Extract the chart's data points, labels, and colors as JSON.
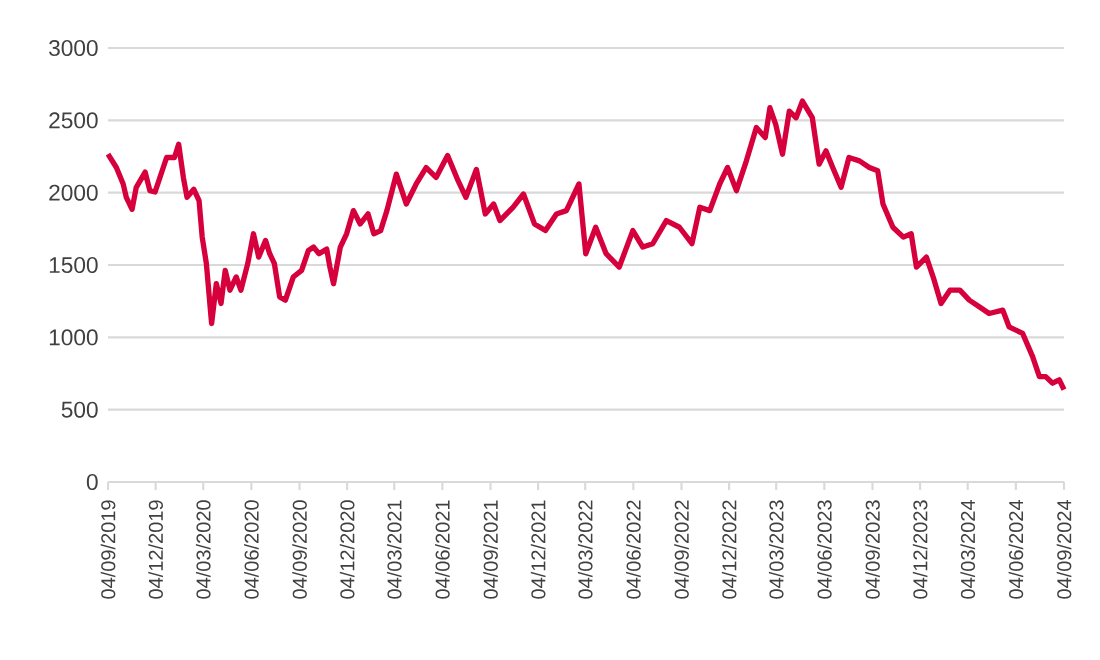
{
  "chart_data": {
    "type": "line",
    "color": "#d6003c",
    "grid": "y",
    "marker": "none",
    "line_style": "solid",
    "xlim": [
      "2019-09-04",
      "2024-09-04"
    ],
    "ylim": [
      0,
      3000
    ],
    "yticks": [
      0,
      500,
      1000,
      1500,
      2000,
      2500,
      3000
    ],
    "xticks": [
      {
        "value": "2019-09-04",
        "label": "04/09/2019"
      },
      {
        "value": "2019-12-04",
        "label": "04/12/2019"
      },
      {
        "value": "2020-03-04",
        "label": "04/03/2020"
      },
      {
        "value": "2020-06-04",
        "label": "04/06/2020"
      },
      {
        "value": "2020-09-04",
        "label": "04/09/2020"
      },
      {
        "value": "2020-12-04",
        "label": "04/12/2020"
      },
      {
        "value": "2021-03-04",
        "label": "04/03/2021"
      },
      {
        "value": "2021-06-04",
        "label": "04/06/2021"
      },
      {
        "value": "2021-09-04",
        "label": "04/09/2021"
      },
      {
        "value": "2021-12-04",
        "label": "04/12/2021"
      },
      {
        "value": "2022-03-04",
        "label": "04/03/2022"
      },
      {
        "value": "2022-06-04",
        "label": "04/06/2022"
      },
      {
        "value": "2022-09-04",
        "label": "04/09/2022"
      },
      {
        "value": "2022-12-04",
        "label": "04/12/2022"
      },
      {
        "value": "2023-03-04",
        "label": "04/03/2023"
      },
      {
        "value": "2023-06-04",
        "label": "04/06/2023"
      },
      {
        "value": "2023-09-04",
        "label": "04/09/2023"
      },
      {
        "value": "2023-12-04",
        "label": "04/12/2023"
      },
      {
        "value": "2024-03-04",
        "label": "04/03/2024"
      },
      {
        "value": "2024-06-04",
        "label": "04/06/2024"
      },
      {
        "value": "2024-09-04",
        "label": "04/09/2024"
      }
    ],
    "x": [
      "2019-09-04",
      "2019-09-20",
      "2019-10-03",
      "2019-10-09",
      "2019-10-20",
      "2019-10-28",
      "2019-11-14",
      "2019-11-23",
      "2019-12-03",
      "2019-12-25",
      "2020-01-09",
      "2020-01-17",
      "2020-01-26",
      "2020-02-02",
      "2020-02-15",
      "2020-02-25",
      "2020-03-02",
      "2020-03-10",
      "2020-03-20",
      "2020-03-29",
      "2020-04-07",
      "2020-04-15",
      "2020-04-24",
      "2020-05-06",
      "2020-05-15",
      "2020-05-28",
      "2020-06-08",
      "2020-06-18",
      "2020-07-01",
      "2020-07-09",
      "2020-07-18",
      "2020-07-28",
      "2020-08-08",
      "2020-08-23",
      "2020-09-08",
      "2020-09-21",
      "2020-10-01",
      "2020-10-11",
      "2020-10-26",
      "2020-11-01",
      "2020-11-08",
      "2020-11-21",
      "2020-12-03",
      "2020-12-16",
      "2020-12-29",
      "2021-01-13",
      "2021-01-24",
      "2021-02-06",
      "2021-02-18",
      "2021-03-08",
      "2021-03-27",
      "2021-04-15",
      "2021-05-04",
      "2021-05-23",
      "2021-06-14",
      "2021-07-04",
      "2021-07-19",
      "2021-08-08",
      "2021-08-25",
      "2021-09-10",
      "2021-09-22",
      "2021-10-17",
      "2021-11-06",
      "2021-11-27",
      "2021-12-18",
      "2022-01-08",
      "2022-01-27",
      "2022-02-20",
      "2022-03-05",
      "2022-03-24",
      "2022-04-13",
      "2022-05-08",
      "2022-06-03",
      "2022-06-22",
      "2022-07-11",
      "2022-08-06",
      "2022-08-31",
      "2022-09-24",
      "2022-10-09",
      "2022-10-28",
      "2022-11-16",
      "2022-12-01",
      "2022-12-18",
      "2023-01-06",
      "2023-01-25",
      "2023-02-11",
      "2023-02-20",
      "2023-03-03",
      "2023-03-16",
      "2023-03-29",
      "2023-04-11",
      "2023-04-23",
      "2023-05-12",
      "2023-05-25",
      "2023-06-07",
      "2023-06-20",
      "2023-07-06",
      "2023-07-21",
      "2023-08-10",
      "2023-08-29",
      "2023-09-14",
      "2023-09-24",
      "2023-10-13",
      "2023-11-02",
      "2023-11-17",
      "2023-11-27",
      "2023-12-16",
      "2023-12-29",
      "2024-01-13",
      "2024-01-30",
      "2024-02-18",
      "2024-03-07",
      "2024-03-26",
      "2024-04-14",
      "2024-05-10",
      "2024-05-22",
      "2024-06-17",
      "2024-07-06",
      "2024-07-19",
      "2024-07-31",
      "2024-08-13",
      "2024-08-26",
      "2024-09-04"
    ],
    "values": [
      2266,
      2174,
      2060,
      1968,
      1885,
      2037,
      2142,
      2014,
      2005,
      2243,
      2243,
      2335,
      2105,
      1968,
      2023,
      1945,
      1693,
      1509,
      1096,
      1371,
      1234,
      1463,
      1326,
      1417,
      1326,
      1509,
      1716,
      1555,
      1670,
      1578,
      1509,
      1280,
      1257,
      1417,
      1463,
      1601,
      1624,
      1578,
      1610,
      1486,
      1371,
      1624,
      1716,
      1876,
      1784,
      1853,
      1716,
      1738,
      1876,
      2128,
      1922,
      2060,
      2174,
      2105,
      2257,
      2083,
      1968,
      2161,
      1853,
      1922,
      1807,
      1899,
      1991,
      1784,
      1738,
      1853,
      1876,
      2060,
      1578,
      1761,
      1578,
      1486,
      1738,
      1624,
      1647,
      1807,
      1761,
      1647,
      1899,
      1876,
      2060,
      2174,
      2014,
      2220,
      2450,
      2381,
      2587,
      2473,
      2266,
      2564,
      2518,
      2633,
      2518,
      2197,
      2289,
      2174,
      2037,
      2243,
      2220,
      2174,
      2151,
      1922,
      1761,
      1693,
      1716,
      1486,
      1555,
      1417,
      1234,
      1326,
      1326,
      1257,
      1211,
      1165,
      1188,
      1073,
      1027,
      867,
      729,
      729,
      683,
      706,
      638
    ]
  }
}
